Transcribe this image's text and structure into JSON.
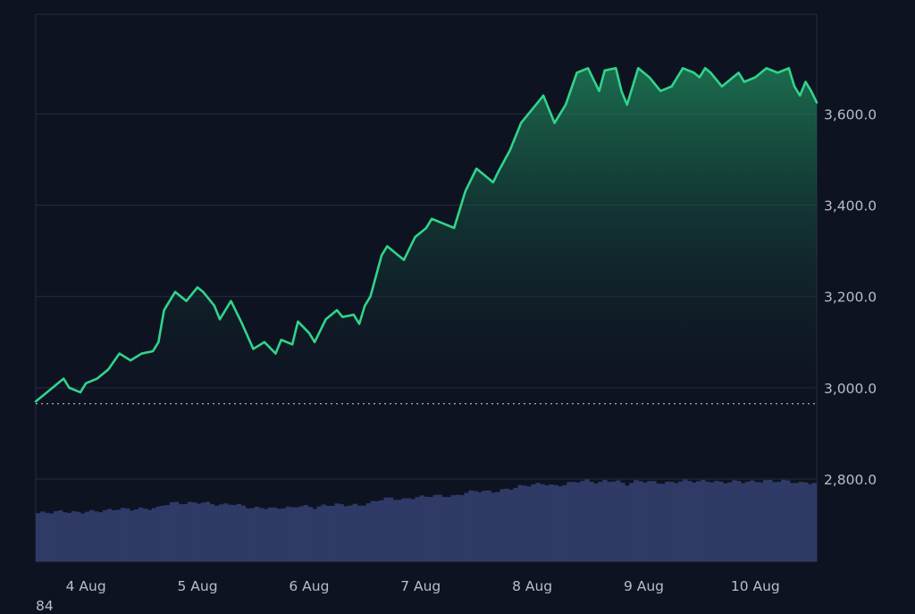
{
  "chart_data": {
    "type": "area",
    "y_axis_position": "right",
    "grid": true,
    "x_tick_labels": [
      "4 Aug",
      "5 Aug",
      "6 Aug",
      "7 Aug",
      "8 Aug",
      "9 Aug",
      "10 Aug"
    ],
    "y_ticks": [
      2800,
      3000,
      3200,
      3400,
      3600
    ],
    "y_tick_labels": [
      "2,800.0",
      "3,000.0",
      "3,200.0",
      "3,400.0",
      "3,600.0"
    ],
    "ylim": [
      2620,
      3818
    ],
    "x_range_days": [
      3.55,
      10.55
    ],
    "reference_line": {
      "value": 2965,
      "style": "dotted"
    },
    "footer_text": "84",
    "colors": {
      "background": "#0e1322",
      "price_line": "#31d48a",
      "area_top": "#1f8a5d",
      "volume_bars": "#2f3b66",
      "grid": "#262d40",
      "axis_text": "#b9bdc9"
    },
    "series": [
      {
        "type": "line",
        "x_dates": [
          "3 Aug 13:12",
          "3 Aug 15:36",
          "3 Aug 19:12",
          "3 Aug 20:24",
          "3 Aug 22:48",
          "4 Aug 00:00",
          "4 Aug 02:24",
          "4 Aug 04:48",
          "4 Aug 07:12",
          "4 Aug 09:36",
          "4 Aug 12:00",
          "4 Aug 14:24",
          "4 Aug 15:36",
          "4 Aug 16:48",
          "4 Aug 19:12",
          "4 Aug 21:36",
          "5 Aug 00:00",
          "5 Aug 01:12",
          "5 Aug 03:36",
          "5 Aug 04:48",
          "5 Aug 07:12",
          "5 Aug 09:36",
          "5 Aug 12:00",
          "5 Aug 14:24",
          "5 Aug 16:48",
          "5 Aug 18:00",
          "5 Aug 20:24",
          "5 Aug 21:36",
          "6 Aug 00:00",
          "6 Aug 01:12",
          "6 Aug 03:36",
          "6 Aug 06:00",
          "6 Aug 07:12",
          "6 Aug 09:36",
          "6 Aug 10:48",
          "6 Aug 12:00",
          "6 Aug 13:12",
          "6 Aug 15:36",
          "6 Aug 16:48",
          "6 Aug 20:24",
          "6 Aug 22:48",
          "7 Aug 01:12",
          "7 Aug 02:24",
          "7 Aug 04:48",
          "7 Aug 07:12",
          "7 Aug 09:36",
          "7 Aug 12:00",
          "7 Aug 13:12",
          "7 Aug 15:36",
          "7 Aug 16:48",
          "7 Aug 19:12",
          "7 Aug 21:36",
          "8 Aug 00:00",
          "8 Aug 02:24",
          "8 Aug 04:48",
          "8 Aug 07:12",
          "8 Aug 09:36",
          "8 Aug 12:00",
          "8 Aug 14:24",
          "8 Aug 15:36",
          "8 Aug 18:00",
          "8 Aug 19:12",
          "8 Aug 20:24",
          "8 Aug 21:36",
          "8 Aug 22:48",
          "9 Aug 01:12",
          "9 Aug 03:36",
          "9 Aug 06:00",
          "9 Aug 08:24",
          "9 Aug 10:48",
          "9 Aug 12:00",
          "9 Aug 13:12",
          "9 Aug 14:24",
          "9 Aug 16:48",
          "9 Aug 19:12",
          "9 Aug 20:24",
          "9 Aug 21:36",
          "10 Aug 00:00",
          "10 Aug 02:24",
          "10 Aug 04:48",
          "10 Aug 07:12",
          "10 Aug 08:24",
          "10 Aug 09:36",
          "10 Aug 10:48",
          "10 Aug 12:00",
          "10 Aug 13:12"
        ],
        "values": [
          2970,
          2990,
          3020,
          3000,
          2990,
          3010,
          3020,
          3040,
          3075,
          3060,
          3075,
          3080,
          3100,
          3170,
          3210,
          3190,
          3220,
          3210,
          3180,
          3150,
          3190,
          3140,
          3085,
          3100,
          3075,
          3105,
          3095,
          3145,
          3120,
          3100,
          3150,
          3170,
          3155,
          3160,
          3140,
          3180,
          3200,
          3290,
          3310,
          3280,
          3330,
          3350,
          3370,
          3360,
          3350,
          3430,
          3480,
          3470,
          3450,
          3475,
          3520,
          3580,
          3610,
          3640,
          3580,
          3620,
          3690,
          3700,
          3650,
          3695,
          3700,
          3650,
          3620,
          3660,
          3700,
          3680,
          3650,
          3660,
          3700,
          3690,
          3680,
          3700,
          3690,
          3660,
          3680,
          3690,
          3670,
          3680,
          3700,
          3690,
          3700,
          3660,
          3640,
          3670,
          3650,
          3625
        ]
      },
      {
        "name": "",
        "type": "bar"
      }
    ]
  }
}
